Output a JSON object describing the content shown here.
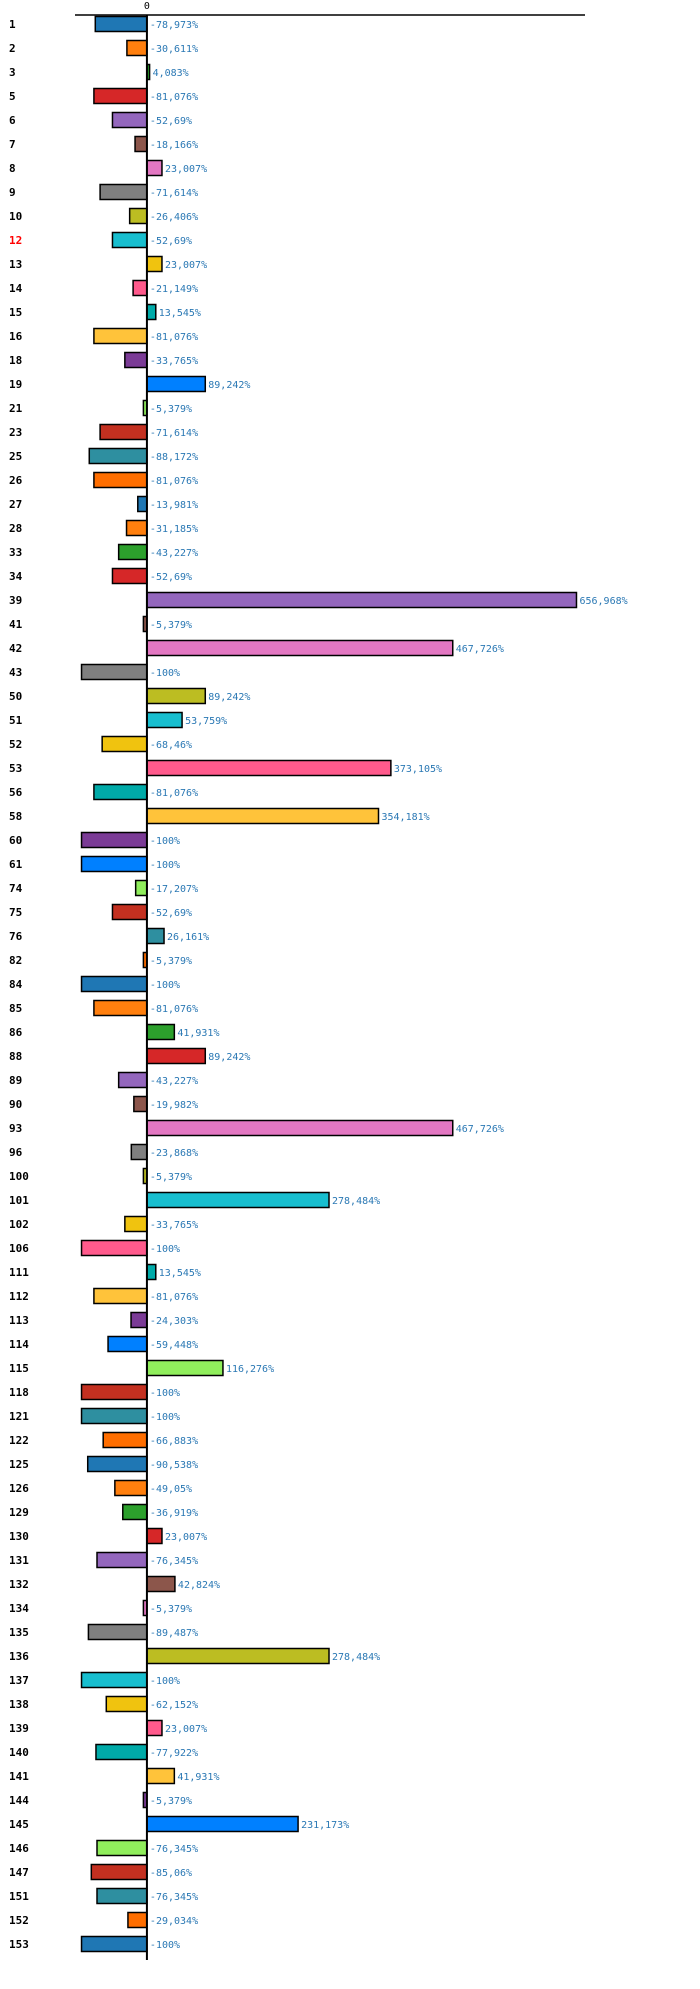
{
  "chart_data": {
    "type": "bar",
    "orientation": "horizontal",
    "title": "",
    "xlabel": "",
    "ylabel": "",
    "xlim": [
      -110,
      670
    ],
    "x_ticks": [
      "0"
    ],
    "value_suffix": "%",
    "decimal_separator": ",",
    "grid": false,
    "highlighted_category": "12",
    "categories": [
      "1",
      "2",
      "3",
      "5",
      "6",
      "7",
      "8",
      "9",
      "10",
      "12",
      "13",
      "14",
      "15",
      "16",
      "18",
      "19",
      "21",
      "23",
      "25",
      "26",
      "27",
      "28",
      "33",
      "34",
      "39",
      "41",
      "42",
      "43",
      "50",
      "51",
      "52",
      "53",
      "56",
      "58",
      "60",
      "61",
      "74",
      "75",
      "76",
      "82",
      "84",
      "85",
      "86",
      "88",
      "89",
      "90",
      "93",
      "96",
      "100",
      "101",
      "102",
      "106",
      "111",
      "112",
      "113",
      "114",
      "115",
      "118",
      "121",
      "122",
      "125",
      "126",
      "129",
      "130",
      "131",
      "132",
      "134",
      "135",
      "136",
      "137",
      "138",
      "139",
      "140",
      "141",
      "144",
      "145",
      "146",
      "147",
      "151",
      "152",
      "153"
    ],
    "values": [
      -78.973,
      -30.611,
      4.083,
      -81.076,
      -52.69,
      -18.166,
      23.007,
      -71.614,
      -26.406,
      -52.69,
      23.007,
      -21.149,
      13.545,
      -81.076,
      -33.765,
      89.242,
      -5.379,
      -71.614,
      -88.172,
      -81.076,
      -13.981,
      -31.185,
      -43.227,
      -52.69,
      656.968,
      -5.379,
      467.726,
      -100,
      89.242,
      53.759,
      -68.46,
      373.105,
      -81.076,
      354.181,
      -100,
      -100,
      -17.207,
      -52.69,
      26.161,
      -5.379,
      -100,
      -81.076,
      41.931,
      89.242,
      -43.227,
      -19.982,
      467.726,
      -23.868,
      -5.379,
      278.484,
      -33.765,
      -100,
      13.545,
      -81.076,
      -24.303,
      -59.448,
      116.276,
      -100,
      -100,
      -66.883,
      -90.538,
      -49.05,
      -36.919,
      23.007,
      -76.345,
      42.824,
      -5.379,
      -89.487,
      278.484,
      -100,
      -62.152,
      23.007,
      -77.922,
      41.931,
      -5.379,
      231.173,
      -76.345,
      -85.06,
      -76.345,
      -29.034,
      -100
    ],
    "value_labels": [
      "-78,973%",
      "-30,611%",
      "4,083%",
      "-81,076%",
      "-52,69%",
      "-18,166%",
      "23,007%",
      "-71,614%",
      "-26,406%",
      "-52,69%",
      "23,007%",
      "-21,149%",
      "13,545%",
      "-81,076%",
      "-33,765%",
      "89,242%",
      "-5,379%",
      "-71,614%",
      "-88,172%",
      "-81,076%",
      "-13,981%",
      "-31,185%",
      "-43,227%",
      "-52,69%",
      "656,968%",
      "-5,379%",
      "467,726%",
      "-100%",
      "89,242%",
      "53,759%",
      "-68,46%",
      "373,105%",
      "-81,076%",
      "354,181%",
      "-100%",
      "-100%",
      "-17,207%",
      "-52,69%",
      "26,161%",
      "-5,379%",
      "-100%",
      "-81,076%",
      "41,931%",
      "89,242%",
      "-43,227%",
      "-19,982%",
      "467,726%",
      "-23,868%",
      "-5,379%",
      "278,484%",
      "-33,765%",
      "-100%",
      "13,545%",
      "-81,076%",
      "-24,303%",
      "-59,448%",
      "116,276%",
      "-100%",
      "-100%",
      "-66,883%",
      "-90,538%",
      "-49,05%",
      "-36,919%",
      "23,007%",
      "-76,345%",
      "42,824%",
      "-5,379%",
      "-89,487%",
      "278,484%",
      "-100%",
      "-62,152%",
      "23,007%",
      "-77,922%",
      "41,931%",
      "-5,379%",
      "231,173%",
      "-76,345%",
      "-85,06%",
      "-76,345%",
      "-29,034%",
      "-100%"
    ],
    "palette": [
      "#1f77b4",
      "#ff7f0e",
      "#2ca02c",
      "#d62728",
      "#9467bd",
      "#8c564b",
      "#e377c2",
      "#7f7f7f",
      "#bcbd22",
      "#17becf",
      "#f0c30f",
      "#ff5a8c",
      "#00aaa8",
      "#ffc33a",
      "#7b3b96",
      "#0080ff",
      "#90ee5c",
      "#c33020",
      "#2e8fa0",
      "#ff6e00"
    ]
  }
}
